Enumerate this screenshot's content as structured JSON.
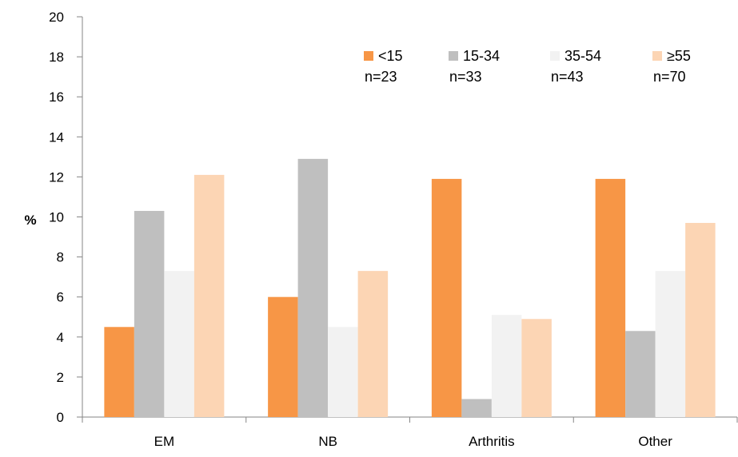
{
  "chart_data": {
    "type": "bar",
    "categories": [
      "EM",
      "NB",
      "Arthritis",
      "Other"
    ],
    "series": [
      {
        "name": "<15",
        "n_label": "n=23",
        "color": "#f79646",
        "values": [
          4.5,
          6.0,
          11.9,
          11.9
        ]
      },
      {
        "name": "15-34",
        "n_label": "n=33",
        "color": "#bfbfbf",
        "values": [
          10.3,
          12.9,
          0.9,
          4.3
        ]
      },
      {
        "name": "35-54",
        "n_label": "n=43",
        "color": "#f2f2f2",
        "values": [
          7.3,
          4.5,
          5.1,
          7.3
        ]
      },
      {
        "name": "≥55",
        "n_label": "n=70",
        "color": "#fcd5b4",
        "values": [
          12.1,
          7.3,
          4.9,
          9.7
        ]
      }
    ],
    "ylabel": "%",
    "xlabel": "",
    "ylim": [
      0,
      20
    ],
    "yticks": [
      0,
      2,
      4,
      6,
      8,
      10,
      12,
      14,
      16,
      18,
      20
    ],
    "grid": false,
    "legend_position": "top-right"
  }
}
